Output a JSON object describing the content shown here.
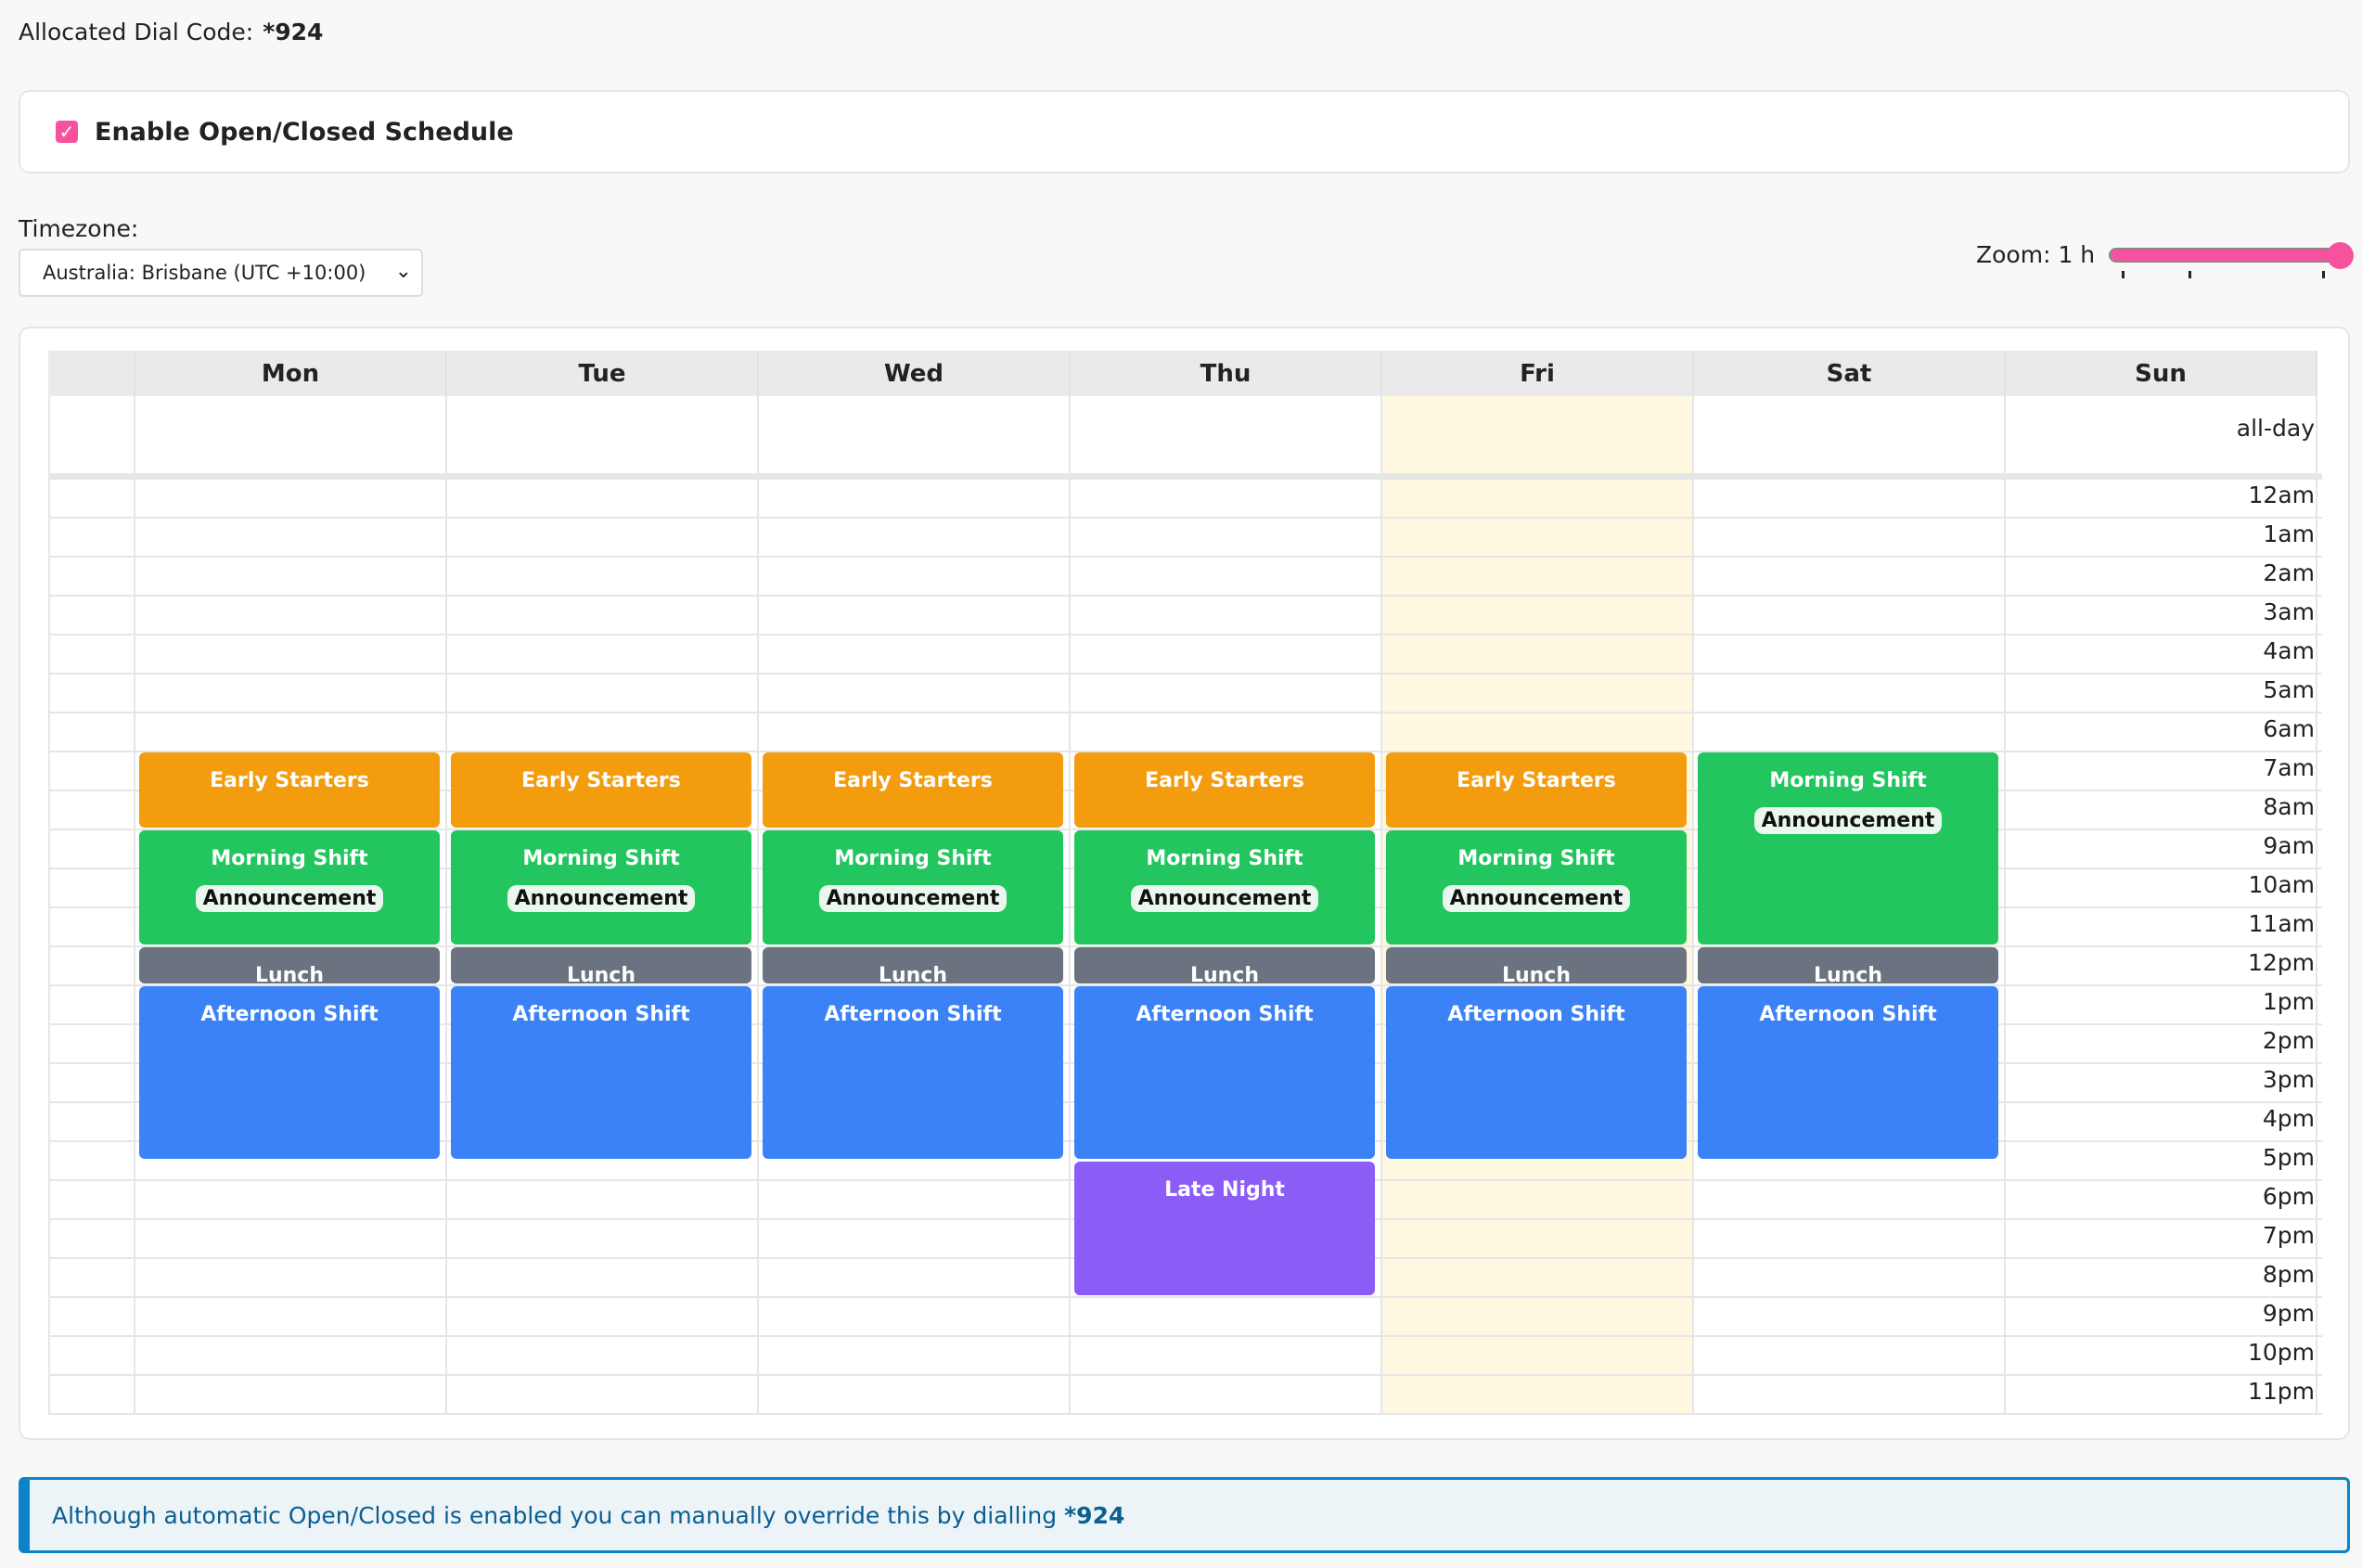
{
  "dial_code": {
    "label": "Allocated Dial Code:",
    "value": "*924"
  },
  "enable_schedule": {
    "label": "Enable Open/Closed Schedule",
    "checked": true
  },
  "timezone": {
    "label": "Timezone:",
    "value": "Australia: Brisbane (UTC +10:00)"
  },
  "zoom": {
    "label": "Zoom: 1 h",
    "level_fraction": 1.0
  },
  "calendar": {
    "days": [
      "Mon",
      "Tue",
      "Wed",
      "Thu",
      "Fri",
      "Sat",
      "Sun"
    ],
    "today_index": 4,
    "allday_label": "all-day",
    "hours": [
      "12am",
      "1am",
      "2am",
      "3am",
      "4am",
      "5am",
      "6am",
      "7am",
      "8am",
      "9am",
      "10am",
      "11am",
      "12pm",
      "1pm",
      "2pm",
      "3pm",
      "4pm",
      "5pm",
      "6pm",
      "7pm",
      "8pm",
      "9pm",
      "10pm",
      "11pm"
    ],
    "colors": {
      "early": "#f39c0e",
      "morning": "#22c55e",
      "lunch": "#6b7280",
      "afternoon": "#3b82f6",
      "late": "#8b5cf6",
      "today": "#fef8e1"
    },
    "events": [
      {
        "day": 0,
        "title": "Early Starters",
        "start": 7,
        "end": 9,
        "kind": "early"
      },
      {
        "day": 0,
        "title": "Morning Shift",
        "badge": "Announcement",
        "start": 9,
        "end": 12,
        "kind": "morning"
      },
      {
        "day": 0,
        "title": "Lunch",
        "start": 12,
        "end": 13,
        "kind": "lunch"
      },
      {
        "day": 0,
        "title": "Afternoon Shift",
        "start": 13,
        "end": 17.5,
        "kind": "afternoon"
      },
      {
        "day": 1,
        "title": "Early Starters",
        "start": 7,
        "end": 9,
        "kind": "early"
      },
      {
        "day": 1,
        "title": "Morning Shift",
        "badge": "Announcement",
        "start": 9,
        "end": 12,
        "kind": "morning"
      },
      {
        "day": 1,
        "title": "Lunch",
        "start": 12,
        "end": 13,
        "kind": "lunch"
      },
      {
        "day": 1,
        "title": "Afternoon Shift",
        "start": 13,
        "end": 17.5,
        "kind": "afternoon"
      },
      {
        "day": 2,
        "title": "Early Starters",
        "start": 7,
        "end": 9,
        "kind": "early"
      },
      {
        "day": 2,
        "title": "Morning Shift",
        "badge": "Announcement",
        "start": 9,
        "end": 12,
        "kind": "morning"
      },
      {
        "day": 2,
        "title": "Lunch",
        "start": 12,
        "end": 13,
        "kind": "lunch"
      },
      {
        "day": 2,
        "title": "Afternoon Shift",
        "start": 13,
        "end": 17.5,
        "kind": "afternoon"
      },
      {
        "day": 3,
        "title": "Early Starters",
        "start": 7,
        "end": 9,
        "kind": "early"
      },
      {
        "day": 3,
        "title": "Morning Shift",
        "badge": "Announcement",
        "start": 9,
        "end": 12,
        "kind": "morning"
      },
      {
        "day": 3,
        "title": "Lunch",
        "start": 12,
        "end": 13,
        "kind": "lunch"
      },
      {
        "day": 3,
        "title": "Afternoon Shift",
        "start": 13,
        "end": 17.5,
        "kind": "afternoon"
      },
      {
        "day": 3,
        "title": "Late Night",
        "start": 17.5,
        "end": 21,
        "kind": "late"
      },
      {
        "day": 4,
        "title": "Early Starters",
        "start": 7,
        "end": 9,
        "kind": "early"
      },
      {
        "day": 4,
        "title": "Morning Shift",
        "badge": "Announcement",
        "start": 9,
        "end": 12,
        "kind": "morning"
      },
      {
        "day": 4,
        "title": "Lunch",
        "start": 12,
        "end": 13,
        "kind": "lunch"
      },
      {
        "day": 4,
        "title": "Afternoon Shift",
        "start": 13,
        "end": 17.5,
        "kind": "afternoon"
      },
      {
        "day": 5,
        "title": "Morning Shift",
        "badge": "Announcement",
        "start": 7,
        "end": 12,
        "kind": "morning"
      },
      {
        "day": 5,
        "title": "Lunch",
        "start": 12,
        "end": 13,
        "kind": "lunch"
      },
      {
        "day": 5,
        "title": "Afternoon Shift",
        "start": 13,
        "end": 17.5,
        "kind": "afternoon"
      }
    ]
  },
  "banner": {
    "text": "Although automatic Open/Closed is enabled you can manually override this by dialling",
    "code": "*924"
  }
}
